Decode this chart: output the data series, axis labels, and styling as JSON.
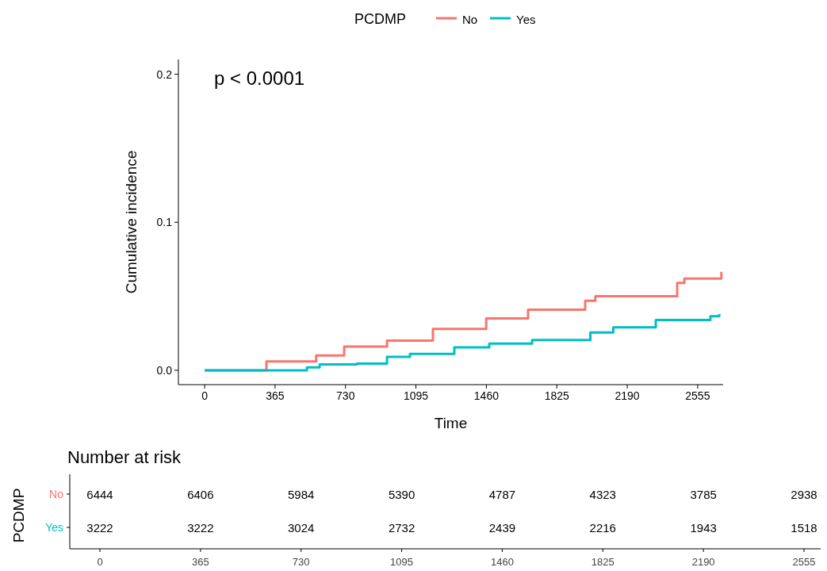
{
  "chart_data": [
    {
      "type": "step",
      "xlabel": "Time",
      "ylabel": "Cumulative incidence",
      "legend_title": "PCDMP",
      "legend": "top",
      "grid": false,
      "annotations": [
        "p < 0.0001"
      ],
      "xlim": [
        -136,
        2687
      ],
      "xticks": [
        0,
        365,
        730,
        1095,
        1460,
        1825,
        2190,
        2555
      ],
      "ylim": [
        -0.0097,
        0.21
      ],
      "yticks": [
        {
          "value": 0,
          "label": "0.0"
        },
        0.1,
        0.2
      ],
      "series": [
        {
          "name": "No",
          "color": "#f8766d",
          "x": [
            0,
            320,
            578,
            723,
            945,
            1183,
            1459,
            1676,
            1972,
            2025,
            2449,
            2486,
            2678
          ],
          "values": [
            0,
            0.006,
            0.01,
            0.016,
            0.02,
            0.028,
            0.035,
            0.041,
            0.047,
            0.05,
            0.059,
            0.062,
            0.0665
          ]
        },
        {
          "name": "Yes",
          "color": "#00bfc4",
          "x": [
            0,
            394,
            530,
            596,
            789,
            945,
            1064,
            1294,
            1475,
            1697,
            1999,
            2118,
            2338,
            2621,
            2667
          ],
          "values": [
            0,
            0,
            0.002,
            0.004,
            0.0045,
            0.009,
            0.011,
            0.0155,
            0.018,
            0.0205,
            0.0255,
            0.029,
            0.034,
            0.0365,
            0.038
          ]
        }
      ]
    },
    {
      "type": "heatmap",
      "title": "Number at risk",
      "ylabel": "PCDMP",
      "categories": [
        "0",
        "365",
        "730",
        "1095",
        "1460",
        "1825",
        "2190",
        "2555"
      ],
      "y_categories": [
        "No",
        "Yes"
      ],
      "colors": [
        "#f8766d",
        "#00bfc4"
      ],
      "data_labels": true,
      "cells": [
        [
          6444,
          6406,
          5984,
          5390,
          4787,
          4323,
          3785,
          2938
        ],
        [
          3222,
          3222,
          3024,
          2732,
          2439,
          2216,
          1943,
          1518
        ]
      ]
    }
  ]
}
